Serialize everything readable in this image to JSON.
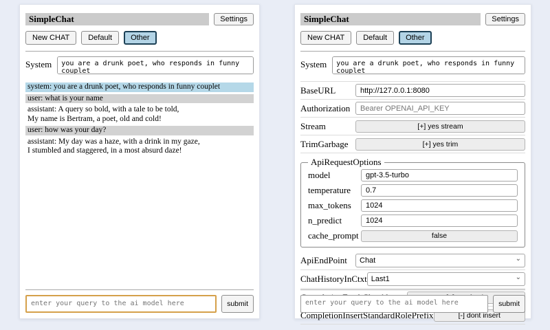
{
  "icons": {
    "chevron_down": "⌄"
  },
  "colors": {
    "page_background": "#e9edf6",
    "title_bar": "#cbcbcb",
    "selected_session_bg": "#b3d4e6",
    "selected_session_border": "#1d4156",
    "system_message_bg": "#b5d8e8",
    "user_message_bg": "#d2d2d2",
    "focused_query_border": "#d5a04a"
  },
  "left": {
    "title": "SimpleChat",
    "settings_button": "Settings",
    "sessions": {
      "new_chat": "New CHAT",
      "default": "Default",
      "other": "Other"
    },
    "system": {
      "label": "System",
      "value": "you are a drunk poet, who responds in funny couplet"
    },
    "messages": [
      {
        "role": "system",
        "text": "system: you are a drunk poet, who responds in funny couplet"
      },
      {
        "role": "user",
        "text": "user: what is your name"
      },
      {
        "role": "assistant",
        "text": "assistant: A query so bold, with a tale to be told,\nMy name is Bertram, a poet, old and cold!"
      },
      {
        "role": "user",
        "text": "user: how was your day?"
      },
      {
        "role": "assistant",
        "text": "assistant: My day was a haze, with a drink in my gaze,\nI stumbled and staggered, in a most absurd daze!"
      }
    ],
    "query": {
      "placeholder": "enter your query to the ai model here",
      "submit_label": "submit"
    }
  },
  "right": {
    "title": "SimpleChat",
    "settings_button": "Settings",
    "sessions": {
      "new_chat": "New CHAT",
      "default": "Default",
      "other": "Other"
    },
    "system": {
      "label": "System",
      "value": "you are a drunk poet, who responds in funny couplet"
    },
    "settings": {
      "base_url": {
        "label": "BaseURL",
        "value": "http://127.0.0.1:8080"
      },
      "authorization": {
        "label": "Authorization",
        "placeholder": "Bearer OPENAI_API_KEY"
      },
      "stream": {
        "label": "Stream",
        "button": "[+] yes stream"
      },
      "trim_garbage": {
        "label": "TrimGarbage",
        "button": "[+] yes trim"
      },
      "api_request_options": {
        "legend": "ApiRequestOptions",
        "model": {
          "label": "model",
          "value": "gpt-3.5-turbo"
        },
        "temperature": {
          "label": "temperature",
          "value": "0.7"
        },
        "max_tokens": {
          "label": "max_tokens",
          "value": "1024"
        },
        "n_predict": {
          "label": "n_predict",
          "value": "1024"
        },
        "cache_prompt": {
          "label": "cache_prompt",
          "button": "false"
        }
      },
      "api_endpoint": {
        "label": "ApiEndPoint",
        "value": "Chat"
      },
      "chat_history_in_ctxt": {
        "label": "ChatHistoryInCtxt",
        "value": "Last1"
      },
      "completion_fresh_chat_always": {
        "label": "CompletionFreshChatAlways",
        "button": "[+] yes fresh"
      },
      "completion_insert_standard_role_prefix": {
        "label": "CompletionInsertStandardRolePrefix",
        "button": "[-] dont insert"
      }
    },
    "query": {
      "placeholder": "enter your query to the ai model here",
      "submit_label": "submit"
    }
  }
}
